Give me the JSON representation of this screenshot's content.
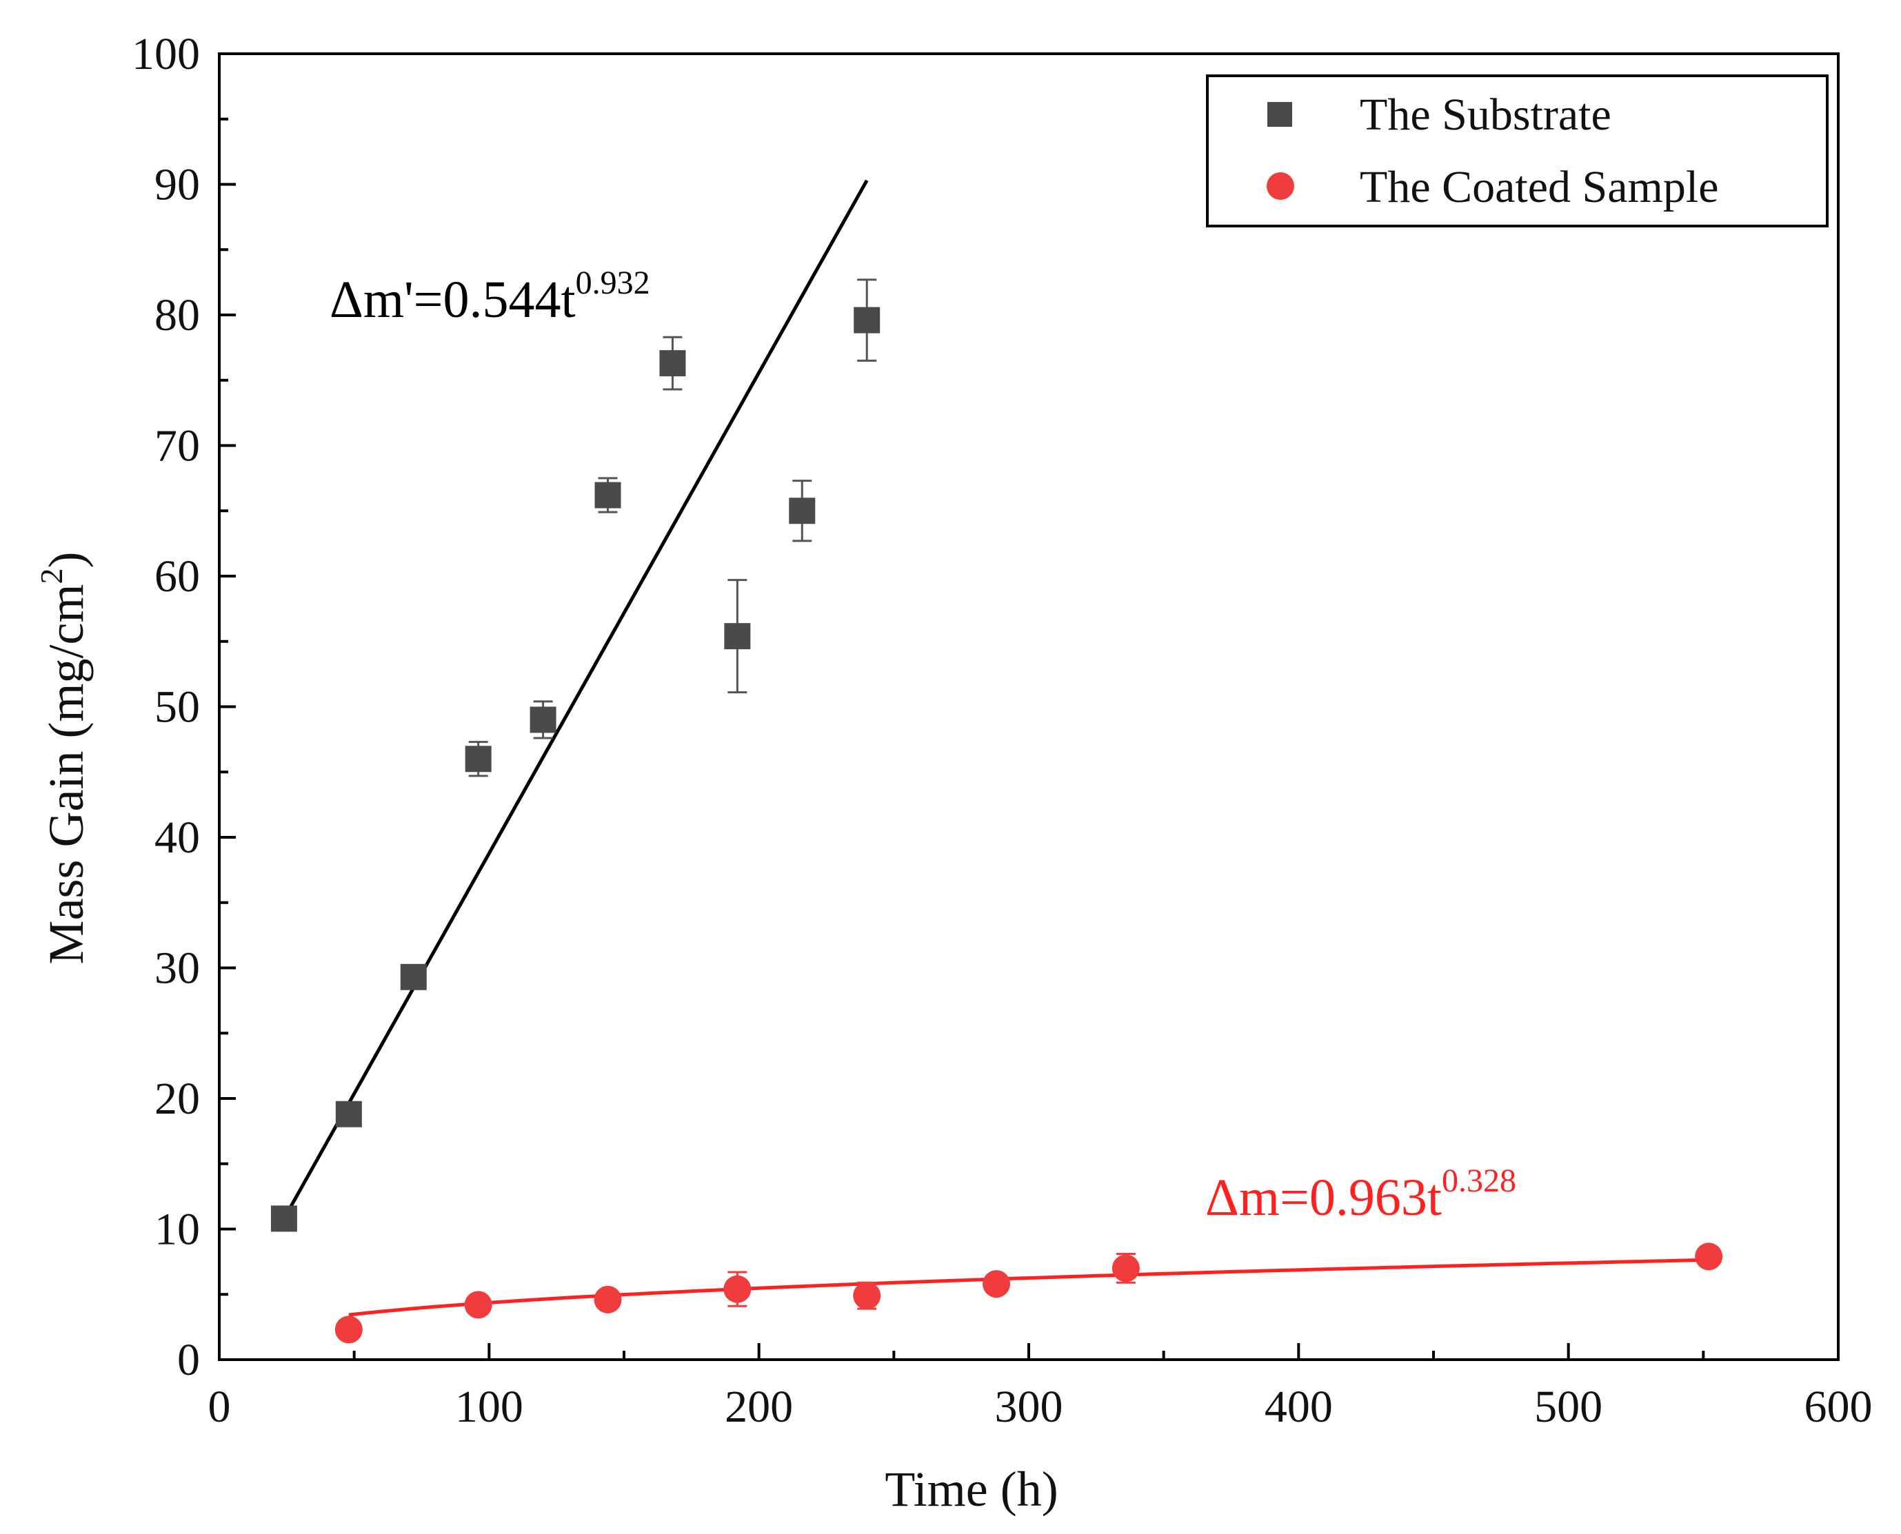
{
  "chart_data": {
    "type": "scatter",
    "title": "",
    "xlabel": "Time (h)",
    "ylabel_main": "Mass Gain (mg/cm",
    "ylabel_sup": "2",
    "ylabel_close": ")",
    "xlim": [
      0,
      600
    ],
    "ylim": [
      0,
      100
    ],
    "xticks": [
      0,
      100,
      200,
      300,
      400,
      500,
      600
    ],
    "yticks": [
      0,
      10,
      20,
      30,
      40,
      50,
      60,
      70,
      80,
      90,
      100
    ],
    "xticks_minor": [
      50,
      150,
      250,
      350,
      450,
      550
    ],
    "yticks_minor": [
      5,
      15,
      25,
      35,
      45,
      55,
      65,
      75,
      85,
      95
    ],
    "grid": false,
    "legend_position": "top-right",
    "series": [
      {
        "name": "The Substrate",
        "marker": "square",
        "color": "#4a4a4a",
        "x": [
          24,
          48,
          72,
          96,
          120,
          144,
          168,
          192,
          216,
          240
        ],
        "y": [
          10.8,
          18.8,
          29.3,
          46.0,
          49.0,
          66.2,
          76.3,
          55.4,
          65.0,
          79.6
        ],
        "err": [
          0.5,
          0.5,
          0.6,
          1.3,
          1.4,
          1.3,
          2.0,
          4.3,
          2.3,
          3.1
        ],
        "fit": {
          "equation_main": "Δm'=0.544t",
          "equation_exp": "0.932",
          "color": "#000000",
          "x_range": [
            24,
            240
          ],
          "y_range": [
            10.8,
            90.3
          ]
        }
      },
      {
        "name": "The Coated Sample",
        "marker": "circle",
        "color": "#f03c3c",
        "x": [
          48,
          96,
          144,
          192,
          240,
          288,
          336,
          552
        ],
        "y": [
          2.3,
          4.2,
          4.6,
          5.4,
          4.9,
          5.8,
          7.0,
          7.9
        ],
        "err": [
          0.3,
          0.6,
          0.6,
          1.3,
          1.0,
          0.5,
          1.1,
          0.3
        ],
        "fit": {
          "equation_main": "Δm=0.963t",
          "equation_exp": "0.328",
          "color": "#ff2020",
          "coef": 0.963,
          "exponent": 0.328,
          "x_range": [
            48,
            552
          ]
        }
      }
    ]
  }
}
